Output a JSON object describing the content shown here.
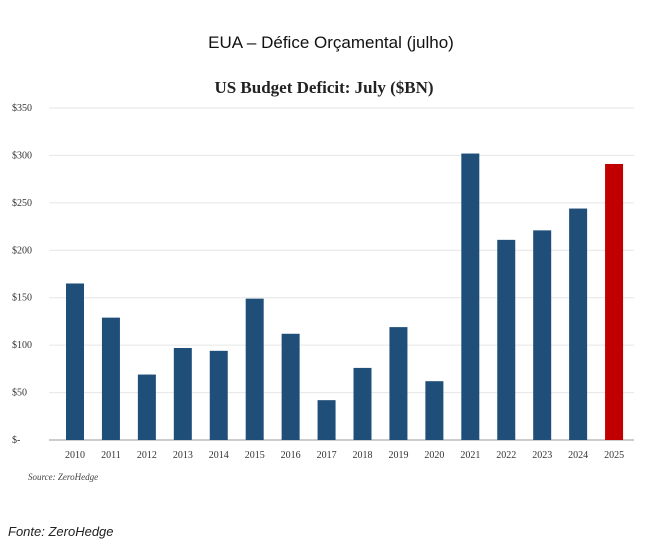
{
  "heading": "EUA – Défice Orçamental (julho)",
  "footer": {
    "source": "Fonte: ZeroHedge"
  },
  "chart_data": {
    "type": "bar",
    "title": "US Budget Deficit: July ($BN)",
    "source_note": "Source: ZeroHedge",
    "categories": [
      "2010",
      "2011",
      "2012",
      "2013",
      "2014",
      "2015",
      "2016",
      "2017",
      "2018",
      "2019",
      "2020",
      "2021",
      "2022",
      "2023",
      "2024",
      "2025"
    ],
    "values": [
      165,
      129,
      69,
      97,
      94,
      149,
      112,
      42,
      76,
      119,
      62,
      302,
      211,
      221,
      244,
      291
    ],
    "ylim": [
      0,
      350
    ],
    "yticks": [
      0,
      50,
      100,
      150,
      200,
      250,
      300,
      350
    ],
    "ytick_labels": [
      "$-",
      "$50",
      "$100",
      "$150",
      "$200",
      "$250",
      "$300",
      "$350"
    ],
    "grid": true,
    "colors": {
      "default": "#1f4e79",
      "highlight": "#c00000"
    },
    "highlight_category": "2025"
  }
}
